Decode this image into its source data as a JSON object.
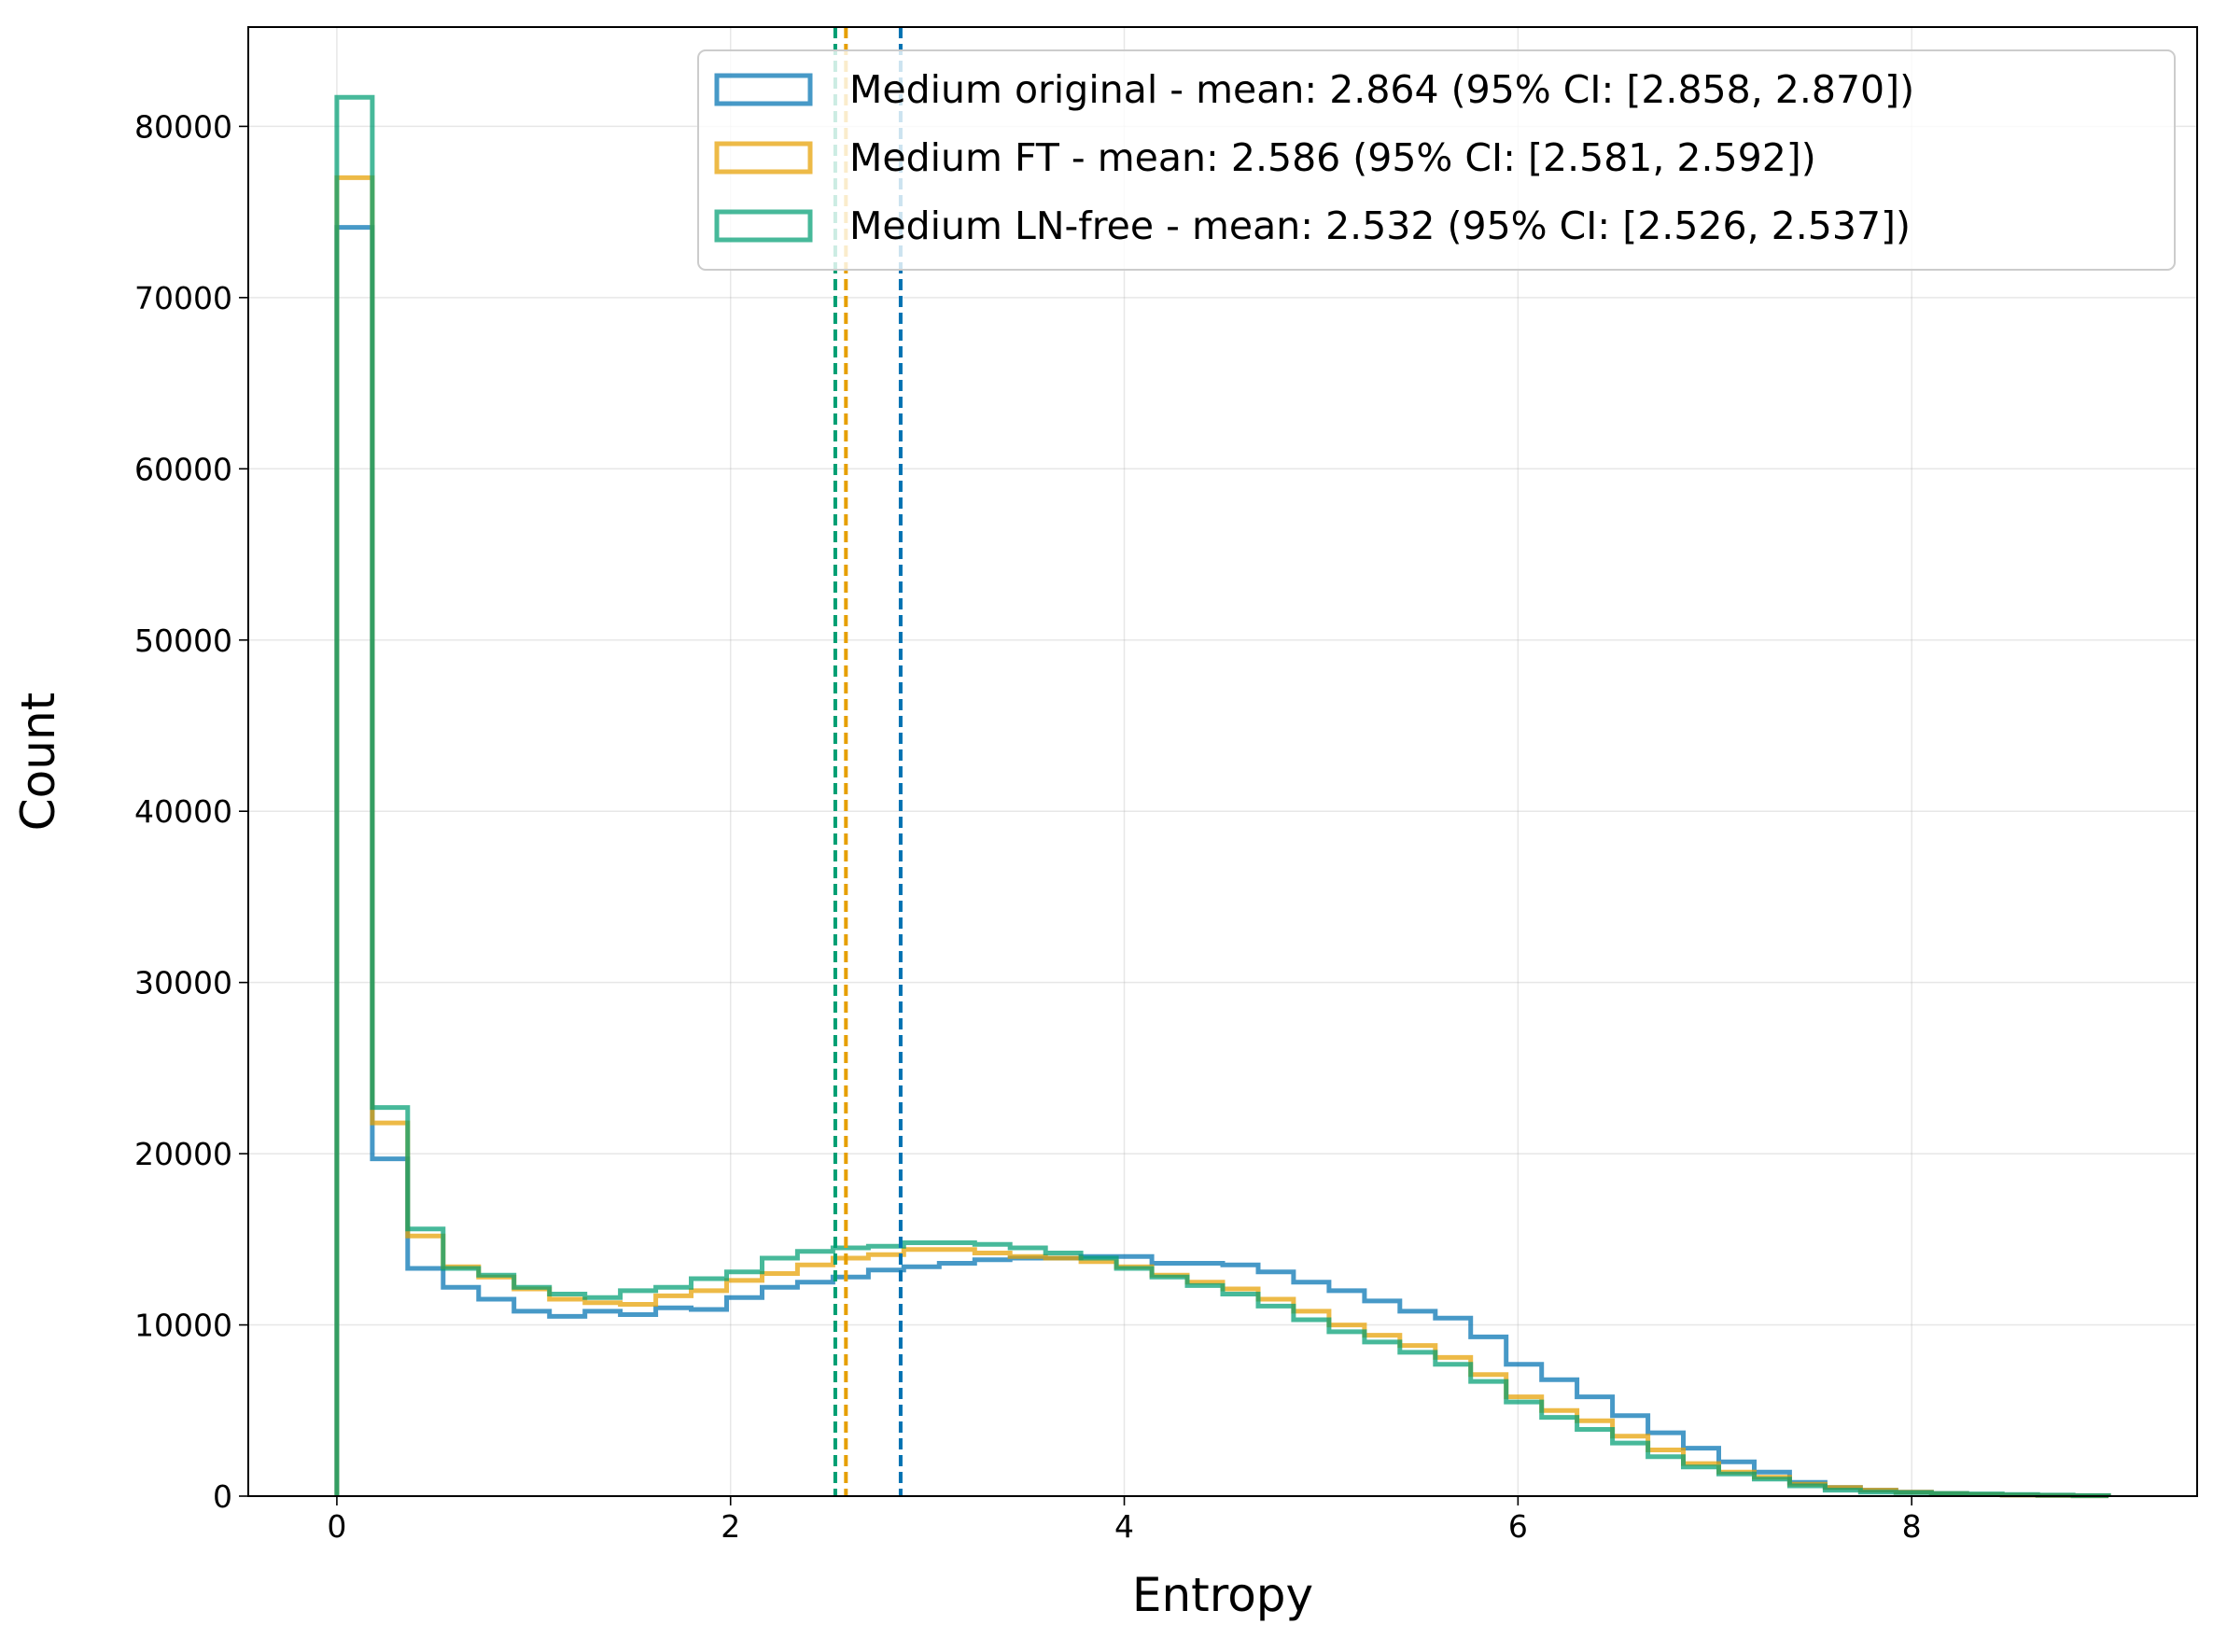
{
  "chart_data": {
    "type": "histogram",
    "xlabel": "Entropy",
    "ylabel": "Count",
    "xlim": [
      -0.45,
      9.45
    ],
    "ylim": [
      0,
      85800
    ],
    "xticks": [
      0,
      2,
      4,
      6,
      8
    ],
    "yticks": [
      0,
      10000,
      20000,
      30000,
      40000,
      50000,
      60000,
      70000,
      80000
    ],
    "grid": true,
    "legend_position": "top-right",
    "bin_edges": [
      0.0,
      0.18,
      0.36,
      0.54,
      0.72,
      0.9,
      1.08,
      1.26,
      1.44,
      1.62,
      1.8,
      1.98,
      2.16,
      2.34,
      2.52,
      2.7,
      2.88,
      3.06,
      3.24,
      3.42,
      3.6,
      3.78,
      3.96,
      4.14,
      4.32,
      4.5,
      4.68,
      4.86,
      5.04,
      5.22,
      5.4,
      5.58,
      5.76,
      5.94,
      6.12,
      6.3,
      6.48,
      6.66,
      6.84,
      7.02,
      7.2,
      7.38,
      7.56,
      7.74,
      7.92,
      8.1,
      8.28,
      8.46,
      8.64,
      8.82,
      9.0
    ],
    "series": [
      {
        "name": "Medium original - mean: 2.864 (95% CI: [2.858, 2.870])",
        "color": "#0072b2",
        "mean": 2.864,
        "values": [
          74100,
          19700,
          13300,
          12200,
          11500,
          10800,
          10500,
          10800,
          10600,
          11000,
          10900,
          11600,
          12200,
          12500,
          12800,
          13200,
          13400,
          13600,
          13800,
          13900,
          13900,
          14000,
          14000,
          13600,
          13600,
          13500,
          13100,
          12500,
          12000,
          11400,
          10800,
          10400,
          9300,
          7700,
          6800,
          5800,
          4700,
          3700,
          2800,
          2000,
          1400,
          800,
          500,
          350,
          230,
          150,
          100,
          60,
          40,
          20
        ]
      },
      {
        "name": "Medium FT - mean: 2.586 (95% CI: [2.581, 2.592])",
        "color": "#e69f00",
        "mean": 2.586,
        "values": [
          77000,
          21800,
          15200,
          13400,
          12800,
          12100,
          11500,
          11300,
          11200,
          11700,
          12000,
          12600,
          13000,
          13500,
          13900,
          14100,
          14400,
          14400,
          14200,
          14000,
          13900,
          13700,
          13400,
          12900,
          12500,
          12100,
          11500,
          10800,
          10000,
          9400,
          8800,
          8100,
          7100,
          5800,
          5000,
          4400,
          3500,
          2700,
          1900,
          1400,
          1100,
          700,
          500,
          350,
          230,
          150,
          100,
          60,
          40,
          20
        ]
      },
      {
        "name": "Medium LN-free - mean: 2.532 (95% CI: [2.526, 2.537])",
        "color": "#009e73",
        "mean": 2.532,
        "values": [
          81700,
          22700,
          15600,
          13300,
          12900,
          12200,
          11800,
          11600,
          12000,
          12200,
          12700,
          13100,
          13900,
          14300,
          14500,
          14600,
          14800,
          14800,
          14700,
          14500,
          14200,
          13900,
          13300,
          12800,
          12300,
          11800,
          11100,
          10300,
          9600,
          9000,
          8400,
          7700,
          6700,
          5500,
          4600,
          3900,
          3100,
          2300,
          1700,
          1300,
          1000,
          600,
          350,
          230,
          200,
          160,
          130,
          100,
          60,
          30
        ]
      }
    ]
  }
}
